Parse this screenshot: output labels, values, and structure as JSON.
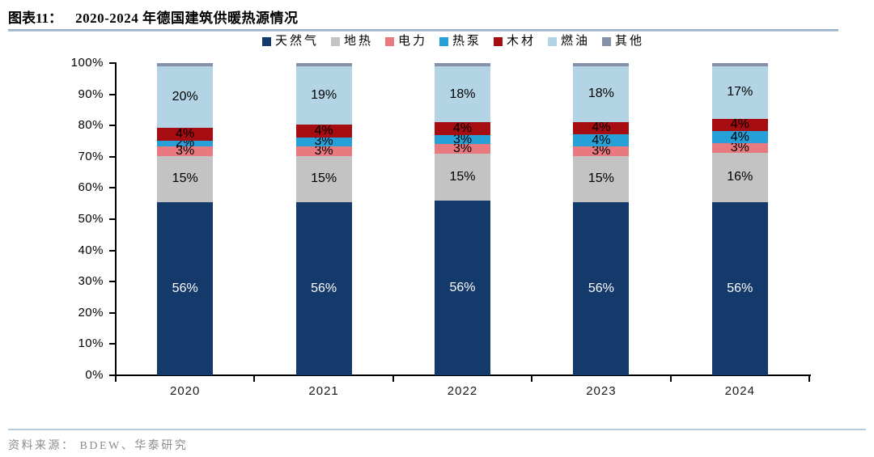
{
  "figure": {
    "label": "图表11：",
    "title": "2020-2024 年德国建筑供暖热源情况"
  },
  "chart_data": {
    "type": "bar",
    "stacked": true,
    "title": "2020-2024 年德国建筑供暖热源情况",
    "categories": [
      "2020",
      "2021",
      "2022",
      "2023",
      "2024"
    ],
    "series": [
      {
        "name": "天然气",
        "color": "#14396B",
        "text_color": "#FFFFFF",
        "values": [
          56,
          56,
          56,
          56,
          56
        ]
      },
      {
        "name": "地热",
        "color": "#C3C3C3",
        "text_color": "#000000",
        "values": [
          15,
          15,
          15,
          15,
          16
        ]
      },
      {
        "name": "电力",
        "color": "#E8797E",
        "text_color": "#000000",
        "values": [
          3,
          3,
          3,
          3,
          3
        ]
      },
      {
        "name": "热泵",
        "color": "#27A0D8",
        "text_color": "#000000",
        "values": [
          2,
          3,
          3,
          4,
          4
        ]
      },
      {
        "name": "木材",
        "color": "#A50D10",
        "text_color": "#000000",
        "values": [
          4,
          4,
          4,
          4,
          4
        ]
      },
      {
        "name": "燃油",
        "color": "#B2D4E4",
        "text_color": "#000000",
        "values": [
          20,
          19,
          18,
          18,
          17
        ]
      },
      {
        "name": "其他",
        "color": "#8591A9",
        "text_color": "#000000",
        "values": [
          1,
          1,
          1,
          1,
          1
        ],
        "show_labels": false
      }
    ],
    "value_suffix": "%",
    "ylim": [
      0,
      100
    ],
    "ytick_step": 10,
    "ytick_suffix": "%",
    "legend_position": "top",
    "grid": false,
    "axis_color": "#000000"
  },
  "source": {
    "text": "资料来源： BDEW、华泰研究"
  }
}
